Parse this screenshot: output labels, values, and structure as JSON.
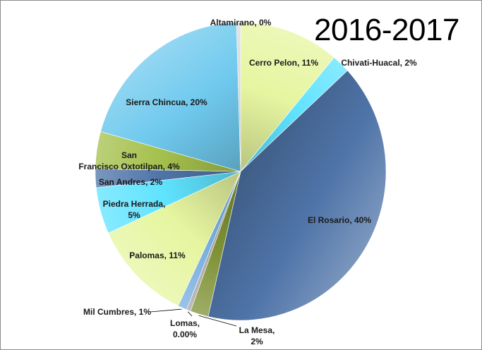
{
  "chart_data": {
    "type": "pie",
    "title": "2016-2017",
    "slices": [
      {
        "name": "Cerro Pelon",
        "value": 11,
        "label": "Cerro Pelon, 11%",
        "color": "#e6f5a0"
      },
      {
        "name": "Chivati-Huacal",
        "value": 2,
        "label": "Chivati-Huacal, 2%",
        "color": "#5fe3ff"
      },
      {
        "name": "El Rosario",
        "value": 40,
        "label": "El Rosario, 40%",
        "color": "#4f74a8"
      },
      {
        "name": "La Mesa",
        "value": 2,
        "label": "La Mesa, 2%",
        "color": "#7e9134"
      },
      {
        "name": "Lomas",
        "value": 0.0,
        "label": "Lomas, 0.00%",
        "color": "#a6a6a6"
      },
      {
        "name": "Mil Cumbres",
        "value": 1,
        "label": "Mil Cumbres, 1%",
        "color": "#78aee0"
      },
      {
        "name": "Palomas",
        "value": 11,
        "label": "Palomas, 11%",
        "color": "#e6f5a0"
      },
      {
        "name": "Piedra Herrada",
        "value": 5,
        "label": "Piedra Herrada, 5%",
        "color": "#5fe3ff"
      },
      {
        "name": "San Andres",
        "value": 2,
        "label": "San Andres, 2%",
        "color": "#4f74a8"
      },
      {
        "name": "San Francisco Oxtotilpan",
        "value": 4,
        "label": "San Francisco Oxtotilpan, 4%",
        "color": "#a4c04c"
      },
      {
        "name": "Sierra Chincua",
        "value": 20,
        "label": "Sierra Chincua, 20%",
        "color": "#6fc9ee"
      },
      {
        "name": "Altamirano",
        "value": 0,
        "label": "Altamirano, 0%",
        "color": "#d9d9d9"
      }
    ],
    "legend": "none"
  }
}
